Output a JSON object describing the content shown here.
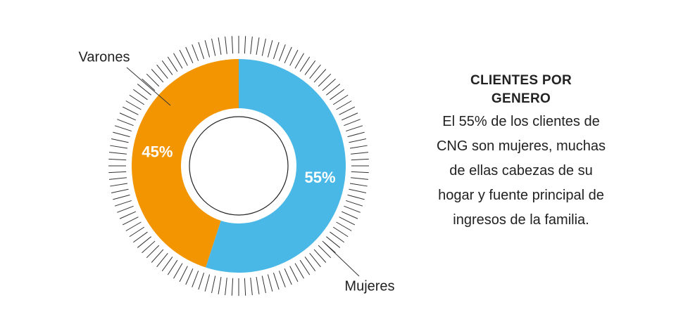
{
  "chart_data": {
    "type": "pie",
    "title": "CLIENTES POR GENERO",
    "description": "El 55% de los clientes de CNG son mujeres, muchas de ellas cabezas de su hogar y fuente principal de ingresos de la familia.",
    "categories": [
      "Mujeres",
      "Varones"
    ],
    "values": [
      55,
      45
    ],
    "value_labels": [
      "55%",
      "45%"
    ],
    "colors": [
      "#4ab8e6",
      "#f29500"
    ]
  }
}
